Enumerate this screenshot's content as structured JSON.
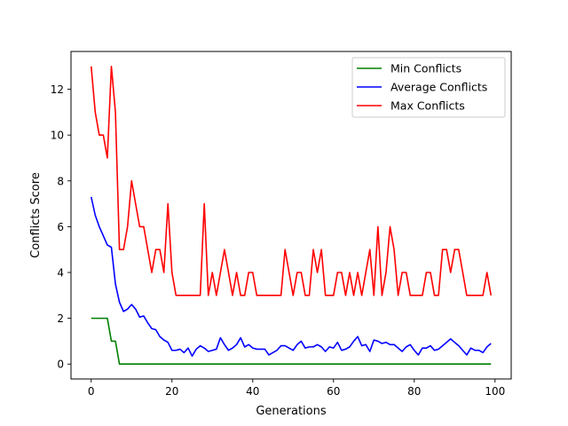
{
  "chart_data": {
    "type": "line",
    "xlabel": "Generations",
    "ylabel": "Conflicts Score",
    "xlim": [
      -5,
      104
    ],
    "ylim": [
      -0.65,
      13.65
    ],
    "xticks": [
      0,
      20,
      40,
      60,
      80,
      100
    ],
    "yticks": [
      0,
      2,
      4,
      6,
      8,
      10,
      12
    ],
    "grid": false,
    "legend_position": "top-right",
    "x_start": 0,
    "series": [
      {
        "name": "Min Conflicts",
        "color": "#008000",
        "values": [
          2,
          2,
          2,
          2,
          2,
          1,
          1,
          0,
          0,
          0,
          0,
          0,
          0,
          0,
          0,
          0,
          0,
          0,
          0,
          0,
          0,
          0,
          0,
          0,
          0,
          0,
          0,
          0,
          0,
          0,
          0,
          0,
          0,
          0,
          0,
          0,
          0,
          0,
          0,
          0,
          0,
          0,
          0,
          0,
          0,
          0,
          0,
          0,
          0,
          0,
          0,
          0,
          0,
          0,
          0,
          0,
          0,
          0,
          0,
          0,
          0,
          0,
          0,
          0,
          0,
          0,
          0,
          0,
          0,
          0,
          0,
          0,
          0,
          0,
          0,
          0,
          0,
          0,
          0,
          0,
          0,
          0,
          0,
          0,
          0,
          0,
          0,
          0,
          0,
          0,
          0,
          0,
          0,
          0,
          0,
          0,
          0,
          0,
          0,
          0
        ]
      },
      {
        "name": "Average Conflicts",
        "color": "#0000ff",
        "values": [
          7.3,
          6.5,
          6.0,
          5.6,
          5.2,
          5.1,
          3.5,
          2.7,
          2.3,
          2.4,
          2.6,
          2.4,
          2.05,
          2.1,
          1.8,
          1.55,
          1.5,
          1.2,
          1.05,
          0.95,
          0.6,
          0.6,
          0.65,
          0.5,
          0.7,
          0.35,
          0.65,
          0.8,
          0.7,
          0.55,
          0.6,
          0.65,
          1.15,
          0.85,
          0.6,
          0.7,
          0.85,
          1.15,
          0.75,
          0.85,
          0.7,
          0.65,
          0.65,
          0.65,
          0.4,
          0.5,
          0.6,
          0.8,
          0.8,
          0.7,
          0.6,
          0.85,
          1.0,
          0.7,
          0.75,
          0.75,
          0.85,
          0.75,
          0.55,
          0.75,
          0.7,
          0.95,
          0.6,
          0.65,
          0.75,
          1.0,
          1.2,
          0.8,
          0.85,
          0.55,
          1.05,
          1.0,
          0.9,
          0.95,
          0.85,
          0.85,
          0.7,
          0.55,
          0.75,
          0.85,
          0.6,
          0.4,
          0.7,
          0.7,
          0.8,
          0.6,
          0.65,
          0.8,
          0.95,
          1.1,
          0.95,
          0.8,
          0.6,
          0.4,
          0.7,
          0.6,
          0.6,
          0.5,
          0.75,
          0.9
        ]
      },
      {
        "name": "Max Conflicts",
        "color": "#ff0000",
        "values": [
          13,
          11,
          10,
          10,
          9,
          13,
          11,
          5,
          5,
          6,
          8,
          7,
          6,
          6,
          5,
          4,
          5,
          5,
          4,
          7,
          4,
          3,
          3,
          3,
          3,
          3,
          3,
          3,
          7,
          3,
          4,
          3,
          4,
          5,
          4,
          3,
          4,
          3,
          3,
          4,
          4,
          3,
          3,
          3,
          3,
          3,
          3,
          3,
          5,
          4,
          3,
          4,
          4,
          3,
          3,
          5,
          4,
          5,
          3,
          3,
          3,
          4,
          4,
          3,
          4,
          3,
          4,
          3,
          4,
          5,
          3,
          6,
          3,
          4,
          6,
          5,
          3,
          4,
          4,
          3,
          3,
          3,
          3,
          4,
          4,
          3,
          3,
          5,
          5,
          4,
          5,
          5,
          4,
          3,
          3,
          3,
          3,
          3,
          4,
          3
        ]
      }
    ]
  }
}
